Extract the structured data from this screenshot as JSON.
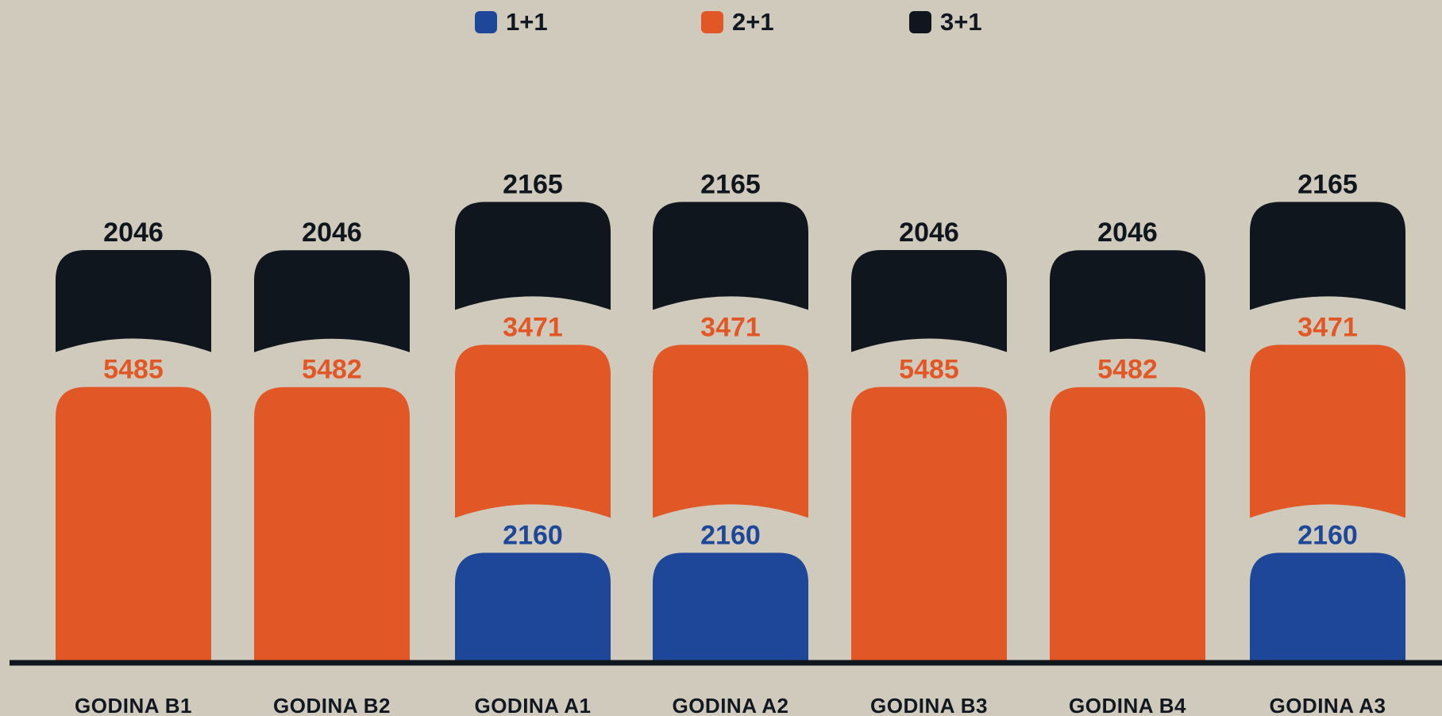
{
  "chart_data": {
    "type": "bar",
    "stacked": true,
    "categories": [
      "GODINA B1",
      "GODINA B2",
      "GODINA A1",
      "GODINA A2",
      "GODINA B3",
      "GODINA B4",
      "GODINA A3"
    ],
    "series": [
      {
        "name": "1+1",
        "color": "#1e4799",
        "values": [
          null,
          null,
          2160,
          2160,
          null,
          null,
          2160
        ]
      },
      {
        "name": "2+1",
        "color": "#e25726",
        "values": [
          5485,
          5482,
          3471,
          3471,
          5485,
          5482,
          3471
        ]
      },
      {
        "name": "3+1",
        "color": "#10161e",
        "values": [
          2046,
          2046,
          2165,
          2165,
          2046,
          2046,
          2165
        ]
      }
    ],
    "legend_position": "top-center",
    "grid": false,
    "background": "#d0cabc",
    "axis_color": "#10161e"
  }
}
